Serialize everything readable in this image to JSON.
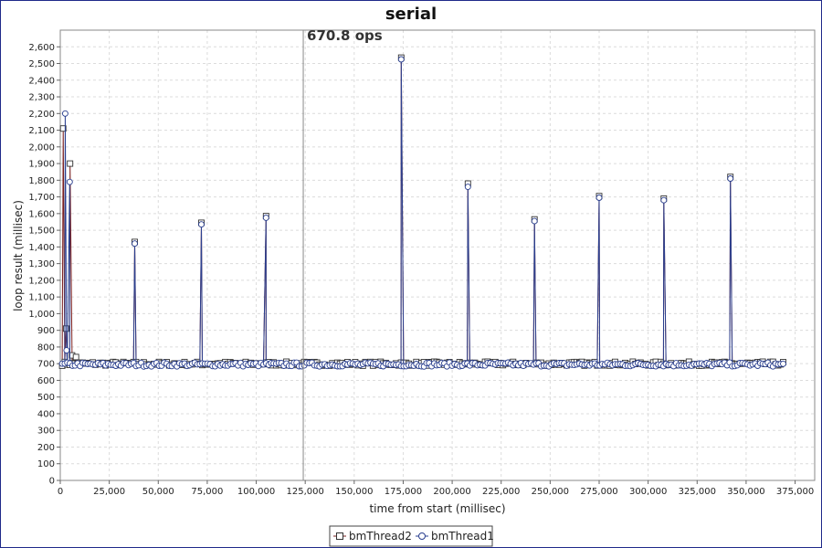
{
  "chart_data": {
    "type": "line",
    "title": "serial",
    "xlabel": "time from start (millisec)",
    "ylabel": "loop result (millisec)",
    "xlim": [
      0,
      385000
    ],
    "ylim": [
      0,
      2700
    ],
    "xticks": [
      0,
      25000,
      50000,
      75000,
      100000,
      125000,
      150000,
      175000,
      200000,
      225000,
      250000,
      275000,
      300000,
      325000,
      350000,
      375000
    ],
    "yticks": [
      0,
      100,
      200,
      300,
      400,
      500,
      600,
      700,
      800,
      900,
      1000,
      1100,
      1200,
      1300,
      1400,
      1500,
      1600,
      1700,
      1800,
      1900,
      2000,
      2100,
      2200,
      2300,
      2400,
      2500,
      2600
    ],
    "grid": true,
    "legend_position": "bottom-center",
    "annotation": {
      "x": 124000,
      "label": "670.8 ops"
    },
    "series": [
      {
        "name": "bmThread2",
        "marker": "square",
        "color": "#7a1f1f",
        "baseline": 700,
        "x_start": 1000,
        "x_end": 370000,
        "spikes": [
          [
            1500,
            2110
          ],
          [
            3000,
            910
          ],
          [
            5000,
            1900
          ],
          [
            6000,
            750
          ],
          [
            8000,
            740
          ],
          [
            38000,
            1430
          ],
          [
            72000,
            1545
          ],
          [
            105000,
            1585
          ],
          [
            174000,
            2535
          ],
          [
            208000,
            1780
          ],
          [
            242000,
            1565
          ],
          [
            275000,
            1705
          ],
          [
            308000,
            1690
          ],
          [
            342000,
            1820
          ]
        ]
      },
      {
        "name": "bmThread1",
        "marker": "circle",
        "color": "#2a3f8f",
        "baseline": 695,
        "x_start": 1000,
        "x_end": 370000,
        "spikes": [
          [
            2500,
            2200
          ],
          [
            3200,
            780
          ],
          [
            4800,
            1790
          ],
          [
            38000,
            1420
          ],
          [
            72000,
            1535
          ],
          [
            105000,
            1575
          ],
          [
            174000,
            2525
          ],
          [
            208000,
            1760
          ],
          [
            242000,
            1555
          ],
          [
            275000,
            1695
          ],
          [
            308000,
            1680
          ],
          [
            342000,
            1810
          ]
        ]
      }
    ]
  }
}
